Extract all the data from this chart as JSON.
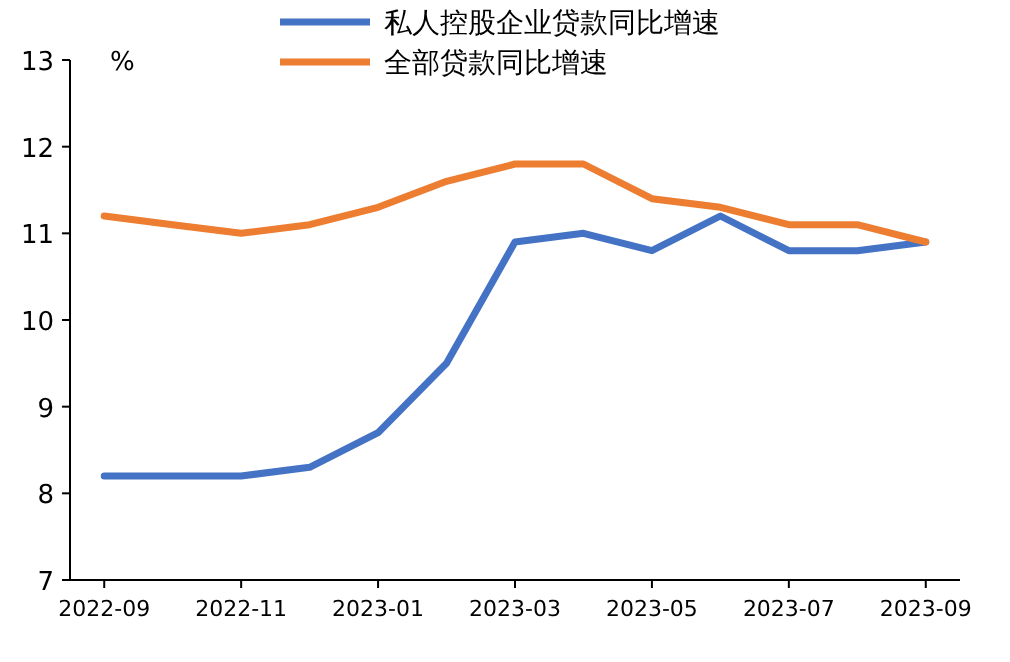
{
  "chart_data": {
    "type": "line",
    "ylabel": "%",
    "categories": [
      "2022-09",
      null,
      "2022-11",
      null,
      "2023-01",
      null,
      "2023-03",
      null,
      "2023-05",
      null,
      "2023-07",
      null,
      "2023-09"
    ],
    "series": [
      {
        "name": "私人控股企业贷款同比增速",
        "color": "#4472c4",
        "values": [
          8.2,
          8.2,
          8.2,
          8.3,
          8.7,
          9.5,
          10.9,
          11.0,
          10.8,
          11.2,
          10.8,
          10.8,
          10.9
        ]
      },
      {
        "name": "全部贷款同比增速",
        "color": "#ed7d31",
        "values": [
          11.2,
          11.1,
          11.0,
          11.1,
          11.3,
          11.6,
          11.8,
          11.8,
          11.4,
          11.3,
          11.1,
          11.1,
          10.9
        ]
      }
    ],
    "ylim": [
      7,
      13
    ],
    "yticks": [
      7,
      8,
      9,
      10,
      11,
      12,
      13
    ],
    "grid": false,
    "legend": "top",
    "marker": "none",
    "line_style": "solid"
  }
}
